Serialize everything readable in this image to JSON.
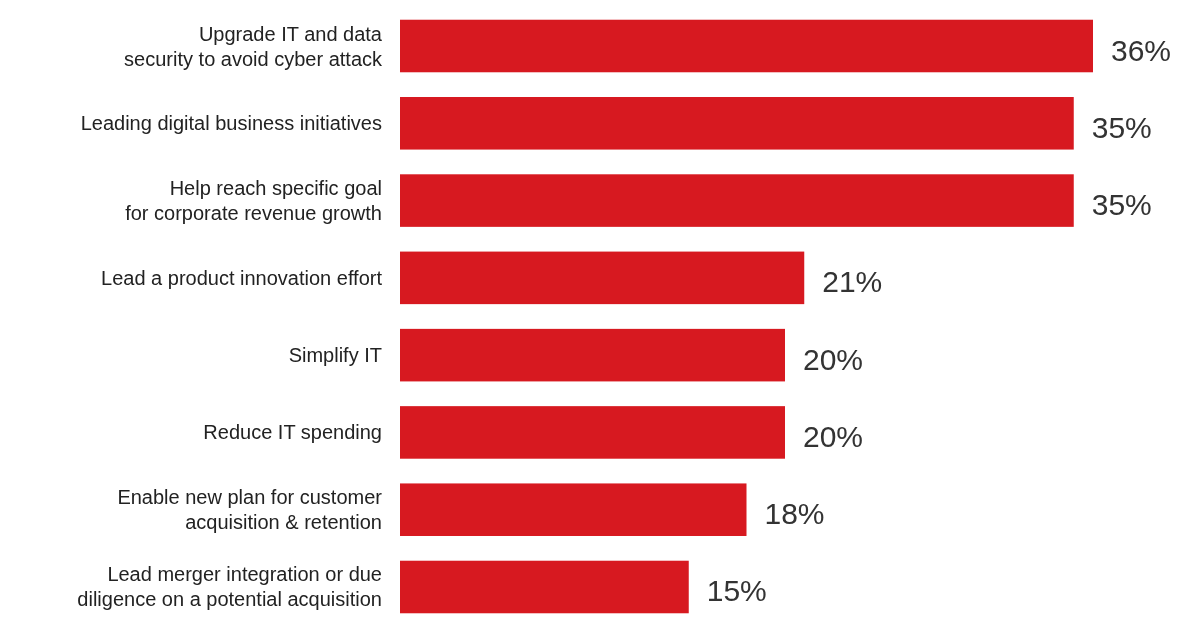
{
  "chart_data": {
    "type": "bar",
    "orientation": "horizontal",
    "categories": [
      "Upgrade IT and data\nsecurity to avoid cyber attack",
      "Leading digital business initiatives",
      "Help reach specific goal\nfor corporate revenue growth",
      "Lead a product innovation effort",
      "Simplify IT",
      "Reduce IT spending",
      "Enable new plan for customer\nacquisition & retention",
      "Lead merger integration or due\ndiligence on a potential acquisition"
    ],
    "values": [
      36,
      35,
      35,
      21,
      20,
      20,
      18,
      15
    ],
    "value_labels": [
      "36%",
      "35%",
      "35%",
      "21%",
      "20%",
      "20%",
      "18%",
      "15%"
    ],
    "color": "#d71920"
  }
}
